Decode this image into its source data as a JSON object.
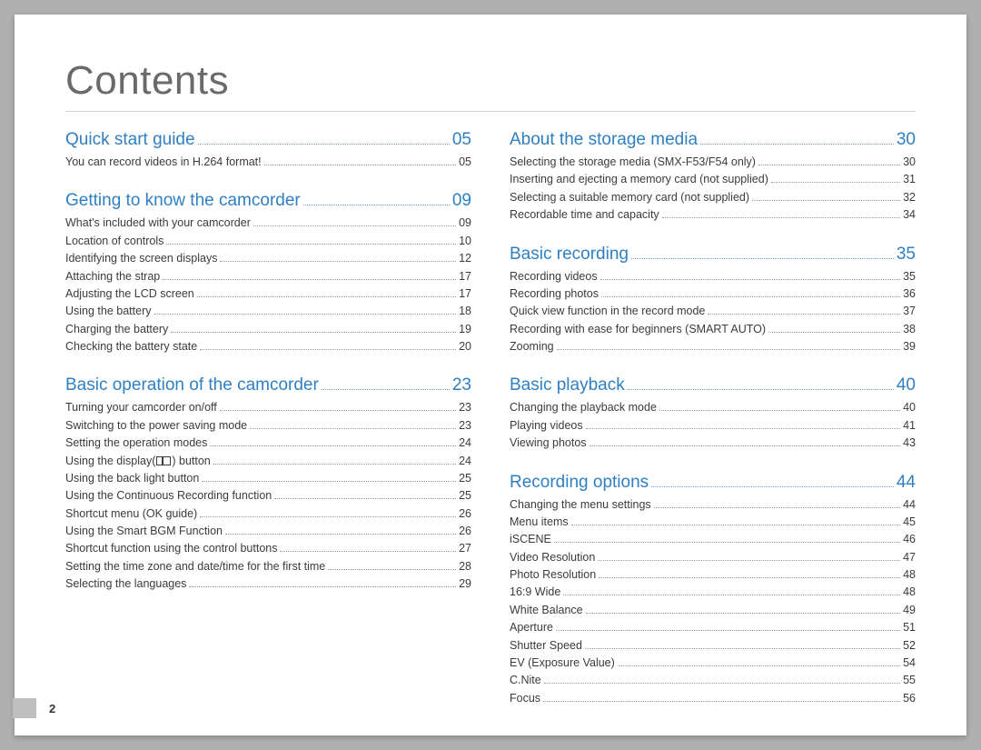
{
  "page_title": "Contents",
  "page_number": "2",
  "colors": {
    "title": "#6a6a6a",
    "section_head": "#2f7fc2",
    "body_text": "#3b3b3b",
    "page_bg": "#ffffff",
    "outer_bg": "#b0b0b0",
    "divider": "#d0d0d0"
  },
  "typography": {
    "title_fontsize_pt": 33,
    "section_fontsize_pt": 14,
    "item_fontsize_pt": 9.5,
    "title_weight": 300,
    "body_family": "Arial"
  },
  "columns": [
    {
      "sections": [
        {
          "title": "Quick start guide",
          "page": "05",
          "items": [
            {
              "label": "You can record videos in H.264 format!",
              "page": "05"
            }
          ]
        },
        {
          "title": "Getting to know the camcorder",
          "page": "09",
          "items": [
            {
              "label": "What's included with your camcorder",
              "page": "09"
            },
            {
              "label": "Location of controls",
              "page": "10"
            },
            {
              "label": "Identifying the screen displays",
              "page": "12"
            },
            {
              "label": "Attaching the strap",
              "page": "17"
            },
            {
              "label": "Adjusting the LCD screen",
              "page": "17"
            },
            {
              "label": "Using the battery",
              "page": "18"
            },
            {
              "label": "Charging the battery",
              "page": "19"
            },
            {
              "label": "Checking the battery state",
              "page": "20"
            }
          ]
        },
        {
          "title": "Basic operation of the camcorder",
          "page": "23",
          "items": [
            {
              "label": "Turning your camcorder on/off",
              "page": "23"
            },
            {
              "label": "Switching to the power saving mode",
              "page": "23"
            },
            {
              "label": "Setting the operation modes",
              "page": "24"
            },
            {
              "label_pre": "Using the display(",
              "icon": "display-icon",
              "label_post": ") button",
              "page": "24"
            },
            {
              "label": "Using the back light button",
              "page": "25"
            },
            {
              "label": "Using the Continuous Recording function",
              "page": "25"
            },
            {
              "label": "Shortcut menu (OK guide)",
              "page": "26"
            },
            {
              "label": "Using the Smart BGM Function",
              "page": "26"
            },
            {
              "label": "Shortcut function using the control buttons",
              "page": "27"
            },
            {
              "label": "Setting the time zone and date/time for the first time",
              "page": "28"
            },
            {
              "label": "Selecting the languages",
              "page": "29"
            }
          ]
        }
      ]
    },
    {
      "sections": [
        {
          "title": "About the storage media",
          "page": "30",
          "items": [
            {
              "label": "Selecting the storage media (SMX-F53/F54 only)",
              "page": "30"
            },
            {
              "label": "Inserting and ejecting a memory card (not supplied)",
              "page": "31"
            },
            {
              "label": "Selecting a suitable memory card (not supplied)",
              "page": "32"
            },
            {
              "label": "Recordable time and capacity",
              "page": "34"
            }
          ]
        },
        {
          "title": "Basic recording",
          "page": "35",
          "items": [
            {
              "label": "Recording videos",
              "page": "35"
            },
            {
              "label": "Recording photos",
              "page": "36"
            },
            {
              "label": "Quick view function in the record mode",
              "page": "37"
            },
            {
              "label": "Recording with ease for beginners (SMART AUTO)",
              "page": "38"
            },
            {
              "label": "Zooming",
              "page": "39"
            }
          ]
        },
        {
          "title": "Basic playback",
          "page": "40",
          "items": [
            {
              "label": "Changing the playback mode",
              "page": "40"
            },
            {
              "label": "Playing videos",
              "page": "41"
            },
            {
              "label": "Viewing photos",
              "page": "43"
            }
          ]
        },
        {
          "title": "Recording options",
          "page": "44",
          "items": [
            {
              "label": "Changing the menu settings",
              "page": "44"
            },
            {
              "label": "Menu items",
              "page": "45"
            },
            {
              "label": "iSCENE",
              "page": "46"
            },
            {
              "label": "Video Resolution",
              "page": "47"
            },
            {
              "label": "Photo Resolution",
              "page": "48"
            },
            {
              "label": "16:9 Wide",
              "page": "48"
            },
            {
              "label": "White Balance",
              "page": "49"
            },
            {
              "label": "Aperture",
              "page": "51"
            },
            {
              "label": "Shutter Speed",
              "page": "52"
            },
            {
              "label": "EV (Exposure Value)",
              "page": "54"
            },
            {
              "label": "C.Nite",
              "page": "55"
            },
            {
              "label": "Focus",
              "page": "56"
            }
          ]
        }
      ]
    }
  ]
}
